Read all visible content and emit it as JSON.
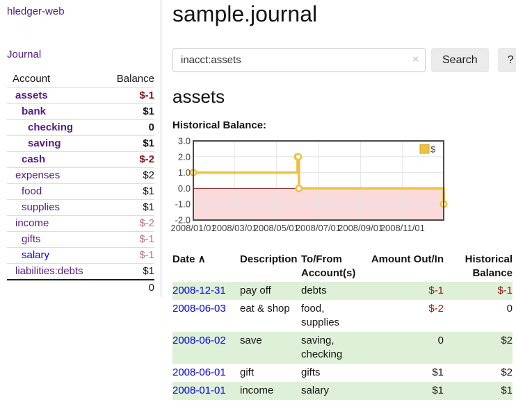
{
  "sidebar": {
    "app_title": "hledger-web",
    "journal_link": "Journal",
    "accounts_table": {
      "account_header": "Account",
      "balance_header": "Balance",
      "rows": [
        {
          "account": "assets",
          "balance": "$-1",
          "depth": 1,
          "bold": true,
          "balance_style": "neg"
        },
        {
          "account": "bank",
          "balance": "$1",
          "depth": 2,
          "bold": true,
          "balance_style": "plain"
        },
        {
          "account": "checking",
          "balance": "0",
          "depth": 3,
          "bold": true,
          "balance_style": "plain"
        },
        {
          "account": "saving",
          "balance": "$1",
          "depth": 3,
          "bold": true,
          "balance_style": "plain"
        },
        {
          "account": "cash",
          "balance": "$-2",
          "depth": 2,
          "bold": true,
          "balance_style": "neg"
        },
        {
          "account": "expenses",
          "balance": "$2",
          "depth": 1,
          "bold": false,
          "balance_style": "plain"
        },
        {
          "account": "food",
          "balance": "$1",
          "depth": 2,
          "bold": false,
          "balance_style": "plain"
        },
        {
          "account": "supplies",
          "balance": "$1",
          "depth": 2,
          "bold": false,
          "balance_style": "plain"
        },
        {
          "account": "income",
          "balance": "$-2",
          "depth": 1,
          "bold": false,
          "balance_style": "neg-muted"
        },
        {
          "account": "gifts",
          "balance": "$-1",
          "depth": 2,
          "bold": false,
          "balance_style": "neg-muted"
        },
        {
          "account": "salary",
          "balance": "$-1",
          "depth": 2,
          "bold": false,
          "balance_style": "neg-muted",
          "link_color": "blue"
        },
        {
          "account": "liabilities:debts",
          "balance": "$1",
          "depth": 1,
          "bold": false,
          "balance_style": "plain"
        }
      ],
      "total": "0"
    }
  },
  "main": {
    "title": "sample.journal",
    "search": {
      "value": "inacct:assets",
      "clear_icon": "×",
      "search_button": "Search",
      "help_button": "?"
    },
    "account_heading": "assets",
    "chart_heading": "Historical Balance:"
  },
  "chart_data": {
    "type": "line",
    "title": "Historical Balance:",
    "step": true,
    "series": [
      {
        "name": "$",
        "color": "#edc240",
        "points": [
          {
            "date": "2008-01-01",
            "x_day": 0,
            "y": 1
          },
          {
            "date": "2008-06-01",
            "x_day": 152,
            "y": 2
          },
          {
            "date": "2008-06-02",
            "x_day": 153,
            "y": 2
          },
          {
            "date": "2008-06-03",
            "x_day": 154,
            "y": 0
          },
          {
            "date": "2008-12-31",
            "x_day": 365,
            "y": -1
          }
        ]
      }
    ],
    "x_ticks": [
      {
        "day": 0,
        "label": "2008/01/01"
      },
      {
        "day": 60,
        "label": "2008/03/01"
      },
      {
        "day": 121,
        "label": "2008/05/01"
      },
      {
        "day": 182,
        "label": "2008/07/01"
      },
      {
        "day": 244,
        "label": "2008/09/01"
      },
      {
        "day": 305,
        "label": "2008/11/01"
      }
    ],
    "y_ticks": [
      "3.0",
      "2.0",
      "1.0",
      "0.0",
      "-1.0",
      "-2.0"
    ],
    "ylim": [
      -2,
      3
    ],
    "xlim_days": [
      0,
      365
    ],
    "grid": true,
    "legend": {
      "label": "$",
      "position": "top-right"
    },
    "negative_region_fill": "#fadada",
    "zero_line_color": "#8b1f1f",
    "grid_color": "#e3e3e3",
    "border_color": "#4a4a4a"
  },
  "register": {
    "headers": {
      "date": "Date",
      "sort_icon": "∧",
      "description": "Description",
      "accounts": "To/From Account(s)",
      "amount": "Amount Out/In",
      "balance": "Historical Balance"
    },
    "rows": [
      {
        "date": "2008-12-31",
        "description": "pay off",
        "accounts": "debts",
        "amount": "$-1",
        "amount_negative": true,
        "balance": "$-1",
        "balance_negative": true,
        "striped": true
      },
      {
        "date": "2008-06-03",
        "description": "eat & shop",
        "accounts": "food, supplies",
        "amount": "$-2",
        "amount_negative": true,
        "balance": "0",
        "balance_negative": false,
        "striped": false
      },
      {
        "date": "2008-06-02",
        "description": "save",
        "accounts": "saving, checking",
        "amount": "0",
        "amount_negative": false,
        "balance": "$2",
        "balance_negative": false,
        "striped": true
      },
      {
        "date": "2008-06-01",
        "description": "gift",
        "accounts": "gifts",
        "amount": "$1",
        "amount_negative": false,
        "balance": "$2",
        "balance_negative": false,
        "striped": false
      },
      {
        "date": "2008-01-01",
        "description": "income",
        "accounts": "salary",
        "amount": "$1",
        "amount_negative": false,
        "balance": "$1",
        "balance_negative": false,
        "striped": true
      }
    ]
  },
  "colors": {
    "link_purple": "#551a8b",
    "link_blue": "#0000ee",
    "negative_strong": "#8b1515",
    "negative_muted": "#b97070",
    "stripe_green": "#dff0d8",
    "series_yellow": "#edc240",
    "button_gray": "#ebebeb"
  }
}
